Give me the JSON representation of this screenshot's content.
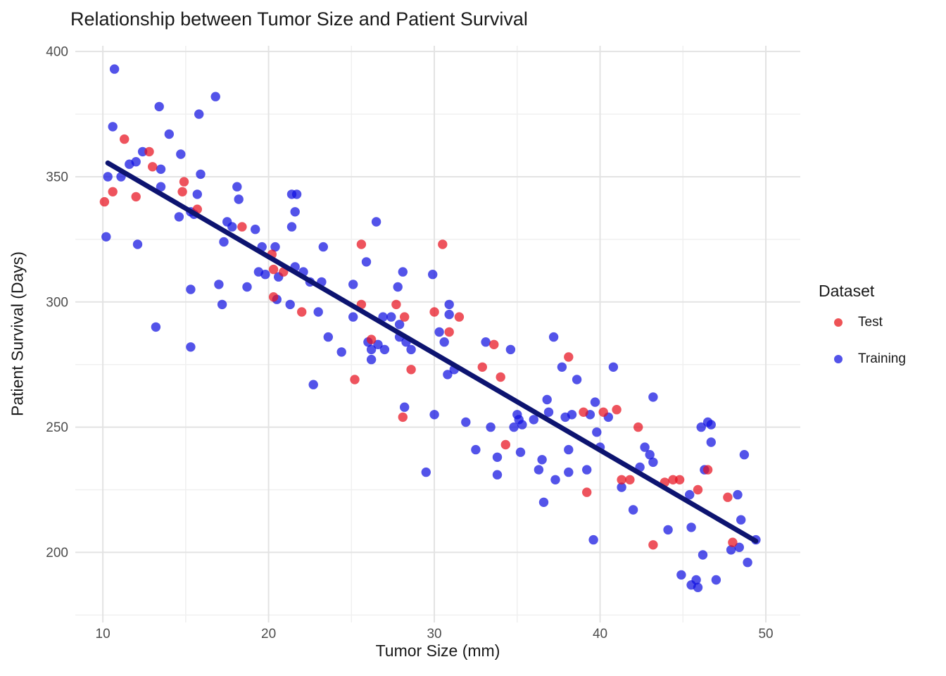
{
  "title": "Relationship between Tumor Size and Patient Survival",
  "colors": {
    "background": "#ffffff",
    "text": "#191919",
    "tick_text": "#4d4d4d",
    "grid_major": "#e3e3e3",
    "grid_minor": "#f0f0f0",
    "test": "#e8101e",
    "training": "#1010e0",
    "trend": "#0d1470"
  },
  "legend": {
    "title": "Dataset",
    "items": [
      {
        "label": "Test",
        "color": "#e8101e",
        "blended": "#ee5356"
      },
      {
        "label": "Training",
        "color": "#1010e0",
        "blended": "#5353e9"
      }
    ]
  },
  "chart_data": {
    "type": "scatter",
    "title": "Relationship between Tumor Size and Patient Survival",
    "xlabel": "Tumor Size (mm)",
    "ylabel": "Patient Survival (Days)",
    "xlim": [
      8.34,
      52.08
    ],
    "ylim": [
      172.0,
      402.3
    ],
    "x_ticks": [
      10,
      20,
      30,
      40,
      50
    ],
    "y_ticks": [
      200,
      250,
      300,
      350,
      400
    ],
    "x_minor": [
      15,
      25,
      35,
      45
    ],
    "y_minor": [
      175,
      225,
      275,
      325,
      375
    ],
    "grid": true,
    "legend_position": "right",
    "point_radius": 6.7,
    "trend_line": {
      "x1": 10.3,
      "y1": 355.5,
      "x2": 49.4,
      "y2": 204.5,
      "width": 7
    },
    "series": [
      {
        "name": "Test",
        "color": "#e8101e",
        "opacity": 0.72,
        "points": [
          [
            11.3,
            365
          ],
          [
            12.8,
            360
          ],
          [
            13.0,
            354
          ],
          [
            14.9,
            348
          ],
          [
            10.6,
            344
          ],
          [
            14.8,
            344
          ],
          [
            12.0,
            342
          ],
          [
            10.1,
            340
          ],
          [
            15.7,
            337
          ],
          [
            18.4,
            330
          ],
          [
            20.2,
            319
          ],
          [
            25.6,
            323
          ],
          [
            20.3,
            313
          ],
          [
            20.9,
            312
          ],
          [
            20.3,
            302
          ],
          [
            22.0,
            296
          ],
          [
            25.6,
            299
          ],
          [
            27.7,
            299
          ],
          [
            28.2,
            294
          ],
          [
            30.0,
            296
          ],
          [
            26.2,
            285
          ],
          [
            28.6,
            273
          ],
          [
            25.2,
            269
          ],
          [
            28.1,
            254
          ],
          [
            30.5,
            323
          ],
          [
            31.5,
            294
          ],
          [
            30.9,
            288
          ],
          [
            33.6,
            283
          ],
          [
            38.1,
            278
          ],
          [
            32.9,
            274
          ],
          [
            34.0,
            270
          ],
          [
            39.0,
            256
          ],
          [
            40.2,
            256
          ],
          [
            41.0,
            257
          ],
          [
            34.3,
            243
          ],
          [
            39.2,
            224
          ],
          [
            42.3,
            250
          ],
          [
            46.5,
            233
          ],
          [
            41.3,
            229
          ],
          [
            41.8,
            229
          ],
          [
            43.9,
            228
          ],
          [
            44.4,
            229
          ],
          [
            44.8,
            229
          ],
          [
            45.9,
            225
          ],
          [
            47.7,
            222
          ],
          [
            43.2,
            203
          ],
          [
            48.0,
            204
          ]
        ]
      },
      {
        "name": "Training",
        "color": "#1010e0",
        "opacity": 0.72,
        "points": [
          [
            10.7,
            393
          ],
          [
            16.8,
            382
          ],
          [
            13.4,
            378
          ],
          [
            15.8,
            375
          ],
          [
            10.6,
            370
          ],
          [
            14.0,
            367
          ],
          [
            12.4,
            360
          ],
          [
            14.7,
            359
          ],
          [
            11.6,
            355
          ],
          [
            12.0,
            356
          ],
          [
            13.5,
            353
          ],
          [
            10.3,
            350
          ],
          [
            11.1,
            350
          ],
          [
            15.9,
            351
          ],
          [
            13.5,
            346
          ],
          [
            18.1,
            346
          ],
          [
            15.7,
            343
          ],
          [
            18.2,
            341
          ],
          [
            15.3,
            336
          ],
          [
            15.5,
            335
          ],
          [
            14.6,
            334
          ],
          [
            17.5,
            332
          ],
          [
            17.8,
            330
          ],
          [
            10.2,
            326
          ],
          [
            12.1,
            323
          ],
          [
            17.3,
            324
          ],
          [
            15.3,
            305
          ],
          [
            17.0,
            307
          ],
          [
            18.7,
            306
          ],
          [
            17.2,
            299
          ],
          [
            13.2,
            290
          ],
          [
            15.3,
            282
          ],
          [
            21.4,
            343
          ],
          [
            21.7,
            343
          ],
          [
            21.6,
            336
          ],
          [
            21.4,
            330
          ],
          [
            26.5,
            332
          ],
          [
            19.2,
            329
          ],
          [
            19.6,
            322
          ],
          [
            20.4,
            322
          ],
          [
            23.3,
            322
          ],
          [
            19.4,
            312
          ],
          [
            19.8,
            311
          ],
          [
            20.6,
            310
          ],
          [
            21.6,
            314
          ],
          [
            22.1,
            312
          ],
          [
            22.5,
            308
          ],
          [
            23.2,
            308
          ],
          [
            25.1,
            307
          ],
          [
            25.9,
            316
          ],
          [
            28.1,
            312
          ],
          [
            27.8,
            306
          ],
          [
            29.9,
            311
          ],
          [
            20.5,
            301
          ],
          [
            21.3,
            299
          ],
          [
            23.0,
            296
          ],
          [
            25.1,
            294
          ],
          [
            26.9,
            294
          ],
          [
            27.4,
            294
          ],
          [
            27.9,
            291
          ],
          [
            23.6,
            286
          ],
          [
            26.0,
            284
          ],
          [
            26.6,
            283
          ],
          [
            27.0,
            281
          ],
          [
            27.9,
            286
          ],
          [
            28.3,
            284
          ],
          [
            28.6,
            281
          ],
          [
            26.2,
            281
          ],
          [
            26.2,
            277
          ],
          [
            24.4,
            280
          ],
          [
            22.7,
            267
          ],
          [
            28.2,
            258
          ],
          [
            30.0,
            255
          ],
          [
            30.9,
            299
          ],
          [
            30.9,
            295
          ],
          [
            30.3,
            288
          ],
          [
            30.6,
            284
          ],
          [
            33.1,
            284
          ],
          [
            34.6,
            281
          ],
          [
            37.2,
            286
          ],
          [
            30.8,
            271
          ],
          [
            31.2,
            273
          ],
          [
            37.7,
            274
          ],
          [
            38.6,
            269
          ],
          [
            40.8,
            274
          ],
          [
            36.8,
            261
          ],
          [
            36.9,
            256
          ],
          [
            35.0,
            255
          ],
          [
            35.1,
            253
          ],
          [
            36.0,
            253
          ],
          [
            37.9,
            254
          ],
          [
            38.3,
            255
          ],
          [
            39.4,
            255
          ],
          [
            39.7,
            260
          ],
          [
            40.5,
            254
          ],
          [
            31.9,
            252
          ],
          [
            33.4,
            250
          ],
          [
            34.8,
            250
          ],
          [
            35.3,
            251
          ],
          [
            29.5,
            232
          ],
          [
            32.5,
            241
          ],
          [
            33.8,
            238
          ],
          [
            35.2,
            240
          ],
          [
            36.5,
            237
          ],
          [
            36.3,
            233
          ],
          [
            33.8,
            231
          ],
          [
            38.1,
            241
          ],
          [
            38.1,
            232
          ],
          [
            37.3,
            229
          ],
          [
            39.2,
            233
          ],
          [
            39.8,
            248
          ],
          [
            40.0,
            242
          ],
          [
            36.6,
            220
          ],
          [
            39.6,
            205
          ],
          [
            43.2,
            262
          ],
          [
            46.5,
            252
          ],
          [
            46.7,
            251
          ],
          [
            46.1,
            250
          ],
          [
            46.7,
            244
          ],
          [
            48.7,
            239
          ],
          [
            42.7,
            242
          ],
          [
            43.0,
            239
          ],
          [
            43.2,
            236
          ],
          [
            42.4,
            234
          ],
          [
            46.3,
            233
          ],
          [
            41.3,
            226
          ],
          [
            45.4,
            223
          ],
          [
            48.3,
            223
          ],
          [
            42.0,
            217
          ],
          [
            44.1,
            209
          ],
          [
            45.5,
            210
          ],
          [
            48.5,
            213
          ],
          [
            49.4,
            205
          ],
          [
            48.4,
            202
          ],
          [
            47.9,
            201
          ],
          [
            46.2,
            199
          ],
          [
            48.9,
            196
          ],
          [
            44.9,
            191
          ],
          [
            45.8,
            189
          ],
          [
            45.5,
            187
          ],
          [
            45.9,
            186
          ],
          [
            47.0,
            189
          ]
        ]
      }
    ]
  }
}
